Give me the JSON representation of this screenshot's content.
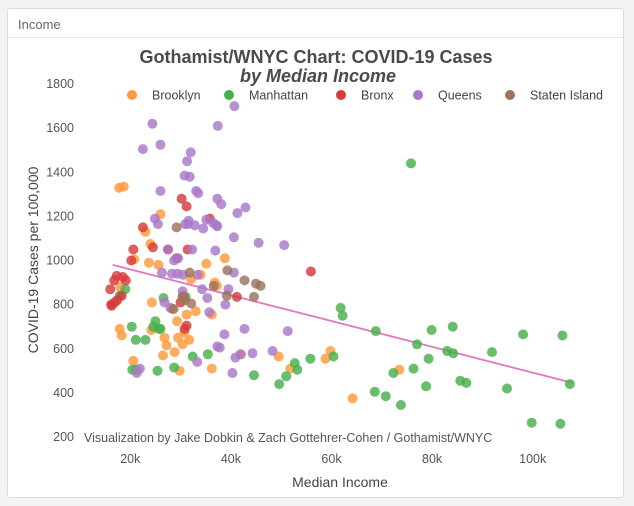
{
  "panel": {
    "header_label": "Income"
  },
  "chart_data": {
    "type": "scatter",
    "title": "Gothamist/WNYC Chart: COVID-19 Cases",
    "subtitle": "by Median Income",
    "xlabel": "Median Income",
    "ylabel": "COVID-19 Cases per 100,000",
    "credit": "Visualization by Jake Dobkin & Zach Gottehrer-Cohen / Gothamist/WNYC",
    "xlim": [
      10000,
      110000
    ],
    "ylim": [
      200,
      1800
    ],
    "xticks": [
      20000,
      40000,
      60000,
      80000,
      100000
    ],
    "xtick_labels": [
      "20k",
      "40k",
      "60k",
      "80k",
      "100k"
    ],
    "yticks": [
      200,
      400,
      600,
      800,
      1000,
      1200,
      1400,
      1600,
      1800
    ],
    "ytick_labels": [
      "200",
      "400",
      "600",
      "800",
      "1000",
      "1200",
      "1400",
      "1600",
      "1800"
    ],
    "grid": false,
    "legend_position": "top",
    "trendline": {
      "x": [
        16500,
        108000
      ],
      "y": [
        980,
        445
      ],
      "color": "#e377c2"
    },
    "series": [
      {
        "name": "Brooklyn",
        "color": "#ff9a3c",
        "points": [
          [
            17800,
            1330
          ],
          [
            18700,
            1335
          ],
          [
            26000,
            1210
          ],
          [
            23000,
            1130
          ],
          [
            24000,
            1075
          ],
          [
            20800,
            1005
          ],
          [
            23700,
            990
          ],
          [
            25600,
            980
          ],
          [
            35100,
            985
          ],
          [
            38800,
            1010
          ],
          [
            34000,
            935
          ],
          [
            32100,
            915
          ],
          [
            37200,
            885
          ],
          [
            18000,
            880
          ],
          [
            24300,
            810
          ],
          [
            28300,
            780
          ],
          [
            33000,
            770
          ],
          [
            31200,
            755
          ],
          [
            36200,
            755
          ],
          [
            29300,
            725
          ],
          [
            17900,
            690
          ],
          [
            24200,
            685
          ],
          [
            30800,
            675
          ],
          [
            18300,
            660
          ],
          [
            26800,
            650
          ],
          [
            29500,
            650
          ],
          [
            31700,
            640
          ],
          [
            30400,
            620
          ],
          [
            27200,
            615
          ],
          [
            20600,
            545
          ],
          [
            26500,
            570
          ],
          [
            28800,
            585
          ],
          [
            36200,
            510
          ],
          [
            29800,
            500
          ],
          [
            42000,
            575
          ],
          [
            49500,
            565
          ],
          [
            51800,
            510
          ],
          [
            58800,
            555
          ],
          [
            59800,
            590
          ],
          [
            64200,
            375
          ],
          [
            73500,
            505
          ],
          [
            36800,
            900
          ]
        ]
      },
      {
        "name": "Manhattan",
        "color": "#47b04b",
        "points": [
          [
            75800,
            1440
          ],
          [
            61800,
            785
          ],
          [
            62200,
            750
          ],
          [
            68800,
            680
          ],
          [
            79900,
            685
          ],
          [
            84100,
            700
          ],
          [
            77000,
            620
          ],
          [
            83000,
            590
          ],
          [
            84200,
            580
          ],
          [
            91900,
            585
          ],
          [
            79300,
            555
          ],
          [
            98100,
            665
          ],
          [
            105900,
            660
          ],
          [
            107400,
            440
          ],
          [
            85600,
            455
          ],
          [
            86800,
            445
          ],
          [
            78800,
            430
          ],
          [
            94900,
            420
          ],
          [
            68600,
            405
          ],
          [
            73800,
            345
          ],
          [
            99800,
            265
          ],
          [
            105500,
            260
          ],
          [
            72300,
            490
          ],
          [
            70800,
            385
          ],
          [
            76300,
            510
          ],
          [
            60400,
            565
          ],
          [
            52700,
            535
          ],
          [
            53200,
            505
          ],
          [
            55800,
            555
          ],
          [
            51000,
            475
          ],
          [
            49600,
            440
          ],
          [
            44600,
            480
          ],
          [
            35400,
            575
          ],
          [
            32400,
            565
          ],
          [
            25000,
            725
          ],
          [
            24600,
            700
          ],
          [
            25700,
            690
          ],
          [
            21100,
            640
          ],
          [
            20300,
            700
          ],
          [
            25400,
            500
          ],
          [
            21200,
            505
          ],
          [
            17900,
            840
          ],
          [
            23000,
            640
          ],
          [
            26000,
            690
          ],
          [
            28700,
            515
          ],
          [
            31000,
            835
          ],
          [
            26600,
            830
          ],
          [
            20400,
            505
          ],
          [
            19000,
            870
          ]
        ]
      },
      {
        "name": "Bronx",
        "color": "#d63a3a",
        "points": [
          [
            16200,
            800
          ],
          [
            16900,
            810
          ],
          [
            17300,
            930
          ],
          [
            18500,
            925
          ],
          [
            19100,
            910
          ],
          [
            16800,
            910
          ],
          [
            16000,
            870
          ],
          [
            17400,
            820
          ],
          [
            18300,
            840
          ],
          [
            20200,
            1000
          ],
          [
            20600,
            1050
          ],
          [
            22500,
            1150
          ],
          [
            24500,
            1060
          ],
          [
            27500,
            1050
          ],
          [
            29200,
            1010
          ],
          [
            30200,
            1280
          ],
          [
            31200,
            1245
          ],
          [
            31400,
            1050
          ],
          [
            35800,
            1190
          ],
          [
            30500,
            840
          ],
          [
            30800,
            690
          ],
          [
            31200,
            705
          ],
          [
            41200,
            835
          ],
          [
            55900,
            950
          ],
          [
            16300,
            795
          ],
          [
            30000,
            810
          ]
        ]
      },
      {
        "name": "Queens",
        "color": "#a879c9",
        "points": [
          [
            24400,
            1620
          ],
          [
            37400,
            1610
          ],
          [
            40700,
            1700
          ],
          [
            22500,
            1505
          ],
          [
            26000,
            1525
          ],
          [
            32000,
            1490
          ],
          [
            31300,
            1450
          ],
          [
            30800,
            1385
          ],
          [
            31800,
            1380
          ],
          [
            33500,
            1305
          ],
          [
            33100,
            1315
          ],
          [
            26000,
            1315
          ],
          [
            37300,
            1280
          ],
          [
            38100,
            1255
          ],
          [
            24900,
            1190
          ],
          [
            25500,
            1165
          ],
          [
            31600,
            1180
          ],
          [
            31500,
            1165
          ],
          [
            30900,
            1165
          ],
          [
            32800,
            1160
          ],
          [
            34500,
            1145
          ],
          [
            35100,
            1185
          ],
          [
            36500,
            1170
          ],
          [
            37300,
            1155
          ],
          [
            37100,
            1160
          ],
          [
            41300,
            1215
          ],
          [
            42900,
            1240
          ],
          [
            40600,
            1105
          ],
          [
            45500,
            1080
          ],
          [
            50600,
            1070
          ],
          [
            32300,
            1050
          ],
          [
            36900,
            1045
          ],
          [
            28700,
            1000
          ],
          [
            27500,
            1050
          ],
          [
            26300,
            945
          ],
          [
            28300,
            940
          ],
          [
            29400,
            940
          ],
          [
            33400,
            935
          ],
          [
            34300,
            870
          ],
          [
            39500,
            870
          ],
          [
            40600,
            945
          ],
          [
            29500,
            1010
          ],
          [
            30500,
            935
          ],
          [
            35300,
            830
          ],
          [
            30400,
            860
          ],
          [
            28000,
            785
          ],
          [
            37800,
            605
          ],
          [
            38700,
            665
          ],
          [
            37300,
            610
          ],
          [
            40900,
            560
          ],
          [
            44300,
            580
          ],
          [
            41900,
            575
          ],
          [
            42700,
            690
          ],
          [
            48300,
            590
          ],
          [
            51300,
            680
          ],
          [
            40300,
            490
          ],
          [
            35700,
            765
          ],
          [
            33300,
            540
          ],
          [
            21300,
            490
          ],
          [
            21900,
            510
          ],
          [
            26800,
            810
          ],
          [
            38900,
            800
          ]
        ]
      },
      {
        "name": "Staten Island",
        "color": "#9e735c",
        "points": [
          [
            39300,
            955
          ],
          [
            42700,
            910
          ],
          [
            45000,
            895
          ],
          [
            45900,
            885
          ],
          [
            39200,
            840
          ],
          [
            44600,
            835
          ],
          [
            30900,
            820
          ],
          [
            30400,
            835
          ],
          [
            32100,
            805
          ],
          [
            28600,
            780
          ],
          [
            31800,
            945
          ],
          [
            36600,
            885
          ],
          [
            29200,
            1150
          ]
        ]
      }
    ]
  }
}
